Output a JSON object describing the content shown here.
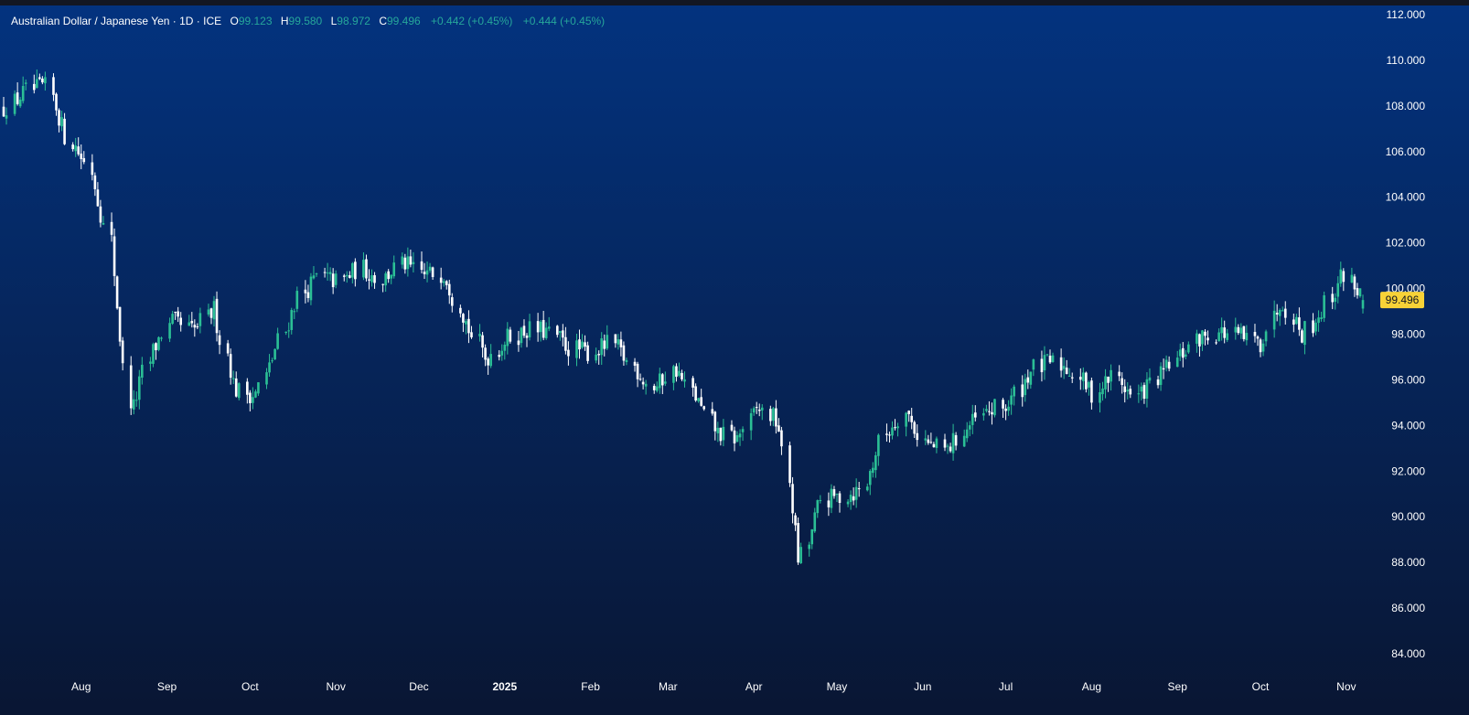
{
  "legend": {
    "symbol": "Australian Dollar / Japanese Yen · 1D · ICE",
    "o_key": "O",
    "o_val": "99.123",
    "h_key": "H",
    "h_val": "99.580",
    "l_key": "L",
    "l_val": "98.972",
    "c_key": "C",
    "c_val": "99.496",
    "chg1": "+0.442 (+0.45%)",
    "chg2": "+0.444 (+0.45%)"
  },
  "colors": {
    "bg_top": "#03337f",
    "bg_bottom": "#091633",
    "up": "#2bbf95",
    "down": "#ffffff",
    "axis_text": "#ffffff",
    "last_price_badge": "#f7d237"
  },
  "chart_data": {
    "type": "candlestick",
    "title": "",
    "xlabel": "",
    "ylabel": "",
    "ylim": [
      82.9,
      112.3
    ],
    "y_ticks": [
      "112.000",
      "110.000",
      "108.000",
      "106.000",
      "104.000",
      "102.000",
      "100.000",
      "98.000",
      "96.000",
      "94.000",
      "92.000",
      "90.000",
      "88.000",
      "86.000",
      "84.000"
    ],
    "x_ticks": [
      {
        "label": "Aug",
        "date": "2024-08-01"
      },
      {
        "label": "Sep",
        "date": "2024-09-01"
      },
      {
        "label": "Oct",
        "date": "2024-10-01"
      },
      {
        "label": "Nov",
        "date": "2024-11-01"
      },
      {
        "label": "Dec",
        "date": "2024-12-01"
      },
      {
        "label": "2025",
        "date": "2025-01-01"
      },
      {
        "label": "Feb",
        "date": "2025-02-01"
      },
      {
        "label": "Mar",
        "date": "2025-03-01"
      },
      {
        "label": "Apr",
        "date": "2025-04-01"
      },
      {
        "label": "May",
        "date": "2025-05-01"
      },
      {
        "label": "Jun",
        "date": "2025-06-01"
      },
      {
        "label": "Jul",
        "date": "2025-07-01"
      },
      {
        "label": "Aug",
        "date": "2025-08-01"
      },
      {
        "label": "Sep",
        "date": "2025-09-01"
      },
      {
        "label": "Oct",
        "date": "2025-10-01"
      },
      {
        "label": "Nov",
        "date": "2025-11-01"
      }
    ],
    "last_price": "99.496",
    "date_range": [
      "2024-07-04",
      "2025-11-07"
    ],
    "closes_weekly": [
      107.9,
      108.6,
      108.9,
      106.6,
      105.4,
      102.1,
      94.5,
      97.2,
      98.6,
      98.1,
      99.1,
      95.6,
      95.3,
      97.4,
      99.6,
      100.5,
      100.3,
      100.9,
      100.4,
      101.1,
      100.6,
      100.7,
      98.6,
      96.9,
      97.8,
      98.2,
      98.1,
      97.4,
      97.2,
      97.6,
      96.6,
      95.6,
      96.5,
      95.2,
      93.7,
      93.4,
      94.8,
      94.1,
      87.9,
      90.7,
      90.9,
      91.2,
      93.6,
      94.6,
      93.2,
      92.9,
      93.9,
      94.6,
      94.9,
      96.4,
      96.8,
      96.4,
      95.4,
      96.2,
      95.2,
      96.0,
      96.9,
      97.8,
      98.1,
      97.9,
      97.6,
      99.6,
      98.0,
      99.1,
      100.7,
      99.5
    ]
  }
}
